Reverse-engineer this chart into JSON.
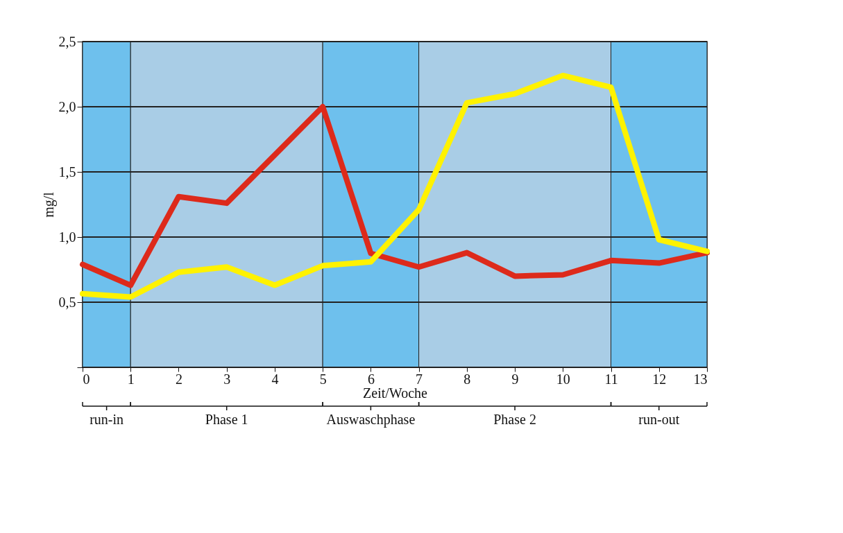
{
  "chart_data": {
    "type": "line",
    "xlabel": "Zeit/Woche",
    "ylabel": "mg/l",
    "x": [
      0,
      1,
      2,
      3,
      4,
      5,
      6,
      7,
      8,
      9,
      10,
      11,
      12,
      13
    ],
    "series": [
      {
        "color": "#dd2a1b",
        "values": [
          0.79,
          0.63,
          1.31,
          1.26,
          1.63,
          2.0,
          0.875,
          0.77,
          0.88,
          0.7,
          0.71,
          0.82,
          0.8,
          0.88
        ]
      },
      {
        "color": "#fff200",
        "values": [
          0.565,
          0.54,
          0.73,
          0.77,
          0.63,
          0.78,
          0.81,
          1.21,
          2.03,
          2.1,
          2.24,
          2.15,
          0.98,
          0.89
        ]
      }
    ],
    "xlim": [
      0,
      13
    ],
    "xticks": [
      0,
      1,
      2,
      3,
      4,
      5,
      6,
      7,
      8,
      9,
      10,
      11,
      12,
      13
    ],
    "ylim": [
      0,
      2.5
    ],
    "yticks": [
      {
        "value": 0,
        "label": null
      },
      {
        "value": 0.5,
        "label": "0,5"
      },
      {
        "value": 1.0,
        "label": "1,0"
      },
      {
        "value": 1.5,
        "label": "1,5"
      },
      {
        "value": 2.0,
        "label": "2,0"
      },
      {
        "value": 2.5,
        "label": "2,5"
      }
    ],
    "bands": [
      {
        "axis": "x",
        "from": 0,
        "to": 1,
        "color": "#6ec0ed"
      },
      {
        "axis": "x",
        "from": 1,
        "to": 5,
        "color": "#a9cde6"
      },
      {
        "axis": "x",
        "from": 5,
        "to": 7,
        "color": "#6ec0ed"
      },
      {
        "axis": "x",
        "from": 7,
        "to": 11,
        "color": "#a9cde6"
      },
      {
        "axis": "x",
        "from": 11,
        "to": 13,
        "color": "#6ec0ed"
      }
    ],
    "annotations": [
      "run-in",
      "Phase 1",
      "Auswaschphase",
      "Phase 2",
      "run-out"
    ],
    "grid": "y",
    "marker": "none",
    "line_style": "solid"
  }
}
